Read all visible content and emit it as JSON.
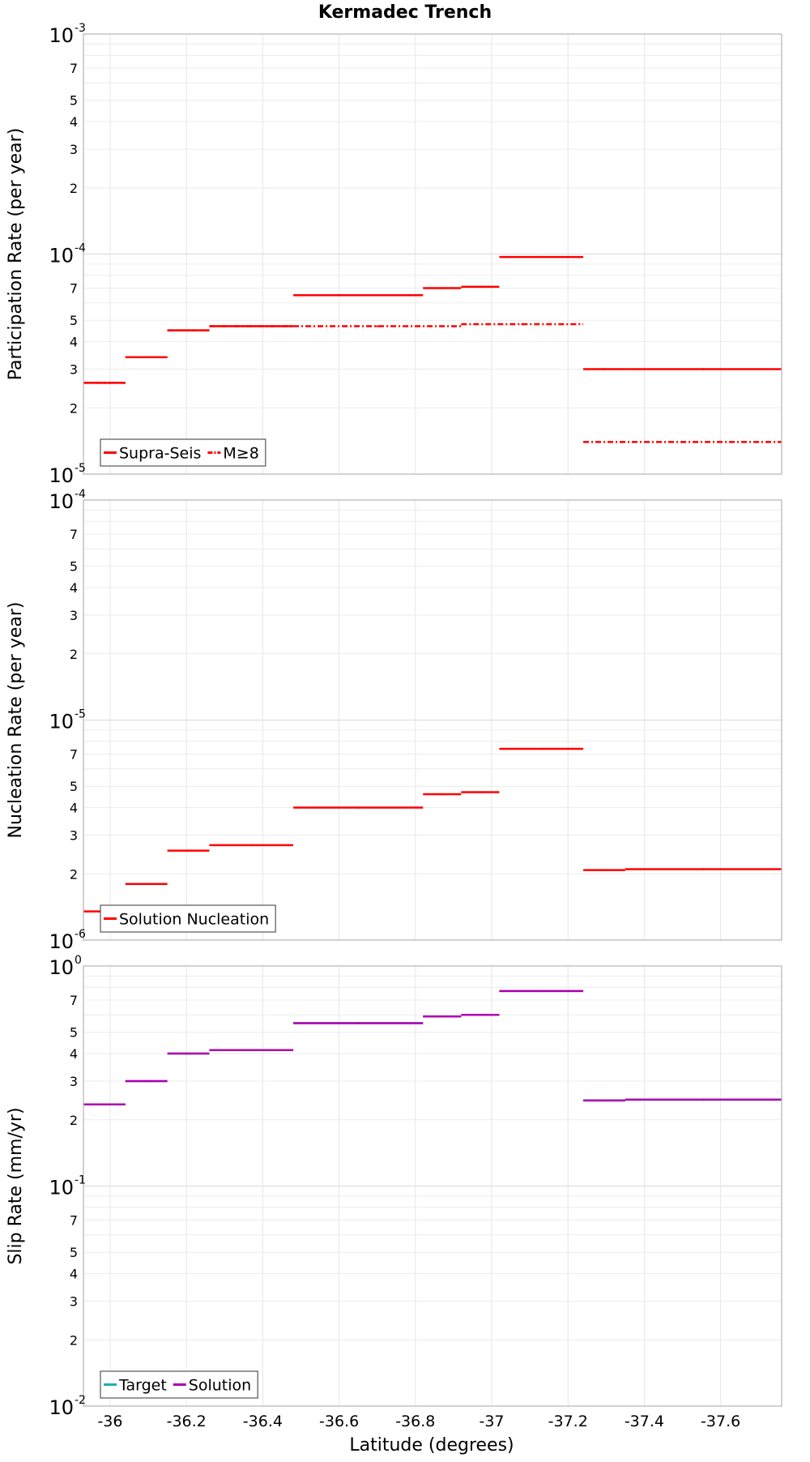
{
  "chart_data": {
    "type": "line",
    "title": "Kermadec Trench",
    "xlabel": "Latitude (degrees)",
    "xlim": [
      -35.93,
      -37.76
    ],
    "x_ticks": [
      -36,
      -36.2,
      -36.4,
      -36.6,
      -36.8,
      -37,
      -37.2,
      -37.4,
      -37.6
    ],
    "x_tick_labels": [
      "-36",
      "-36.2",
      "-36.4",
      "-36.6",
      "-36.8",
      "-37",
      "-37.2",
      "-37.4",
      "-37.6"
    ],
    "colors": {
      "red": "#ff0000",
      "magenta": "#b000b0",
      "teal": "#20b0b0"
    },
    "panels": [
      {
        "ylabel": "Participation Rate (per year)",
        "yscale": "log",
        "ylim": [
          1e-05,
          0.001
        ],
        "decade_labels": [
          {
            "base": "10",
            "exp": "-5",
            "value": 1e-05
          },
          {
            "base": "10",
            "exp": "-4",
            "value": 0.0001
          },
          {
            "base": "10",
            "exp": "-3",
            "value": 0.001
          }
        ],
        "minor_labels": [
          "2",
          "3",
          "4",
          "5",
          "7"
        ],
        "legend": [
          {
            "label": "Supra-Seis",
            "color": "#ff0000",
            "style": "solid"
          },
          {
            "label": "M≥8",
            "color": "#ff0000",
            "style": "dashdot"
          }
        ],
        "series": [
          {
            "name": "Supra-Seis",
            "style": "solid",
            "color": "#ff0000",
            "segments": [
              {
                "x0": -35.93,
                "x1": -36.04,
                "y": 2.6e-05
              },
              {
                "x0": -36.04,
                "x1": -36.15,
                "y": 3.4e-05
              },
              {
                "x0": -36.15,
                "x1": -36.26,
                "y": 4.5e-05
              },
              {
                "x0": -36.26,
                "x1": -36.48,
                "y": 4.7e-05
              },
              {
                "x0": -36.48,
                "x1": -36.82,
                "y": 6.5e-05
              },
              {
                "x0": -36.82,
                "x1": -36.92,
                "y": 7e-05
              },
              {
                "x0": -36.92,
                "x1": -37.02,
                "y": 7.1e-05
              },
              {
                "x0": -37.02,
                "x1": -37.24,
                "y": 9.7e-05
              },
              {
                "x0": -37.24,
                "x1": -37.35,
                "y": 3e-05
              },
              {
                "x0": -37.35,
                "x1": -37.76,
                "y": 3e-05
              }
            ]
          },
          {
            "name": "M≥8",
            "style": "dashdot",
            "color": "#ff0000",
            "segments": [
              {
                "x0": -35.93,
                "x1": -36.04,
                "y": 2.6e-05
              },
              {
                "x0": -36.04,
                "x1": -36.15,
                "y": 3.4e-05
              },
              {
                "x0": -36.15,
                "x1": -36.26,
                "y": 4.5e-05
              },
              {
                "x0": -36.26,
                "x1": -36.48,
                "y": 4.7e-05
              },
              {
                "x0": -36.48,
                "x1": -36.92,
                "y": 4.7e-05
              },
              {
                "x0": -36.92,
                "x1": -37.24,
                "y": 4.8e-05
              },
              {
                "x0": -37.24,
                "x1": -37.76,
                "y": 1.4e-05
              }
            ]
          }
        ]
      },
      {
        "ylabel": "Nucleation Rate (per year)",
        "yscale": "log",
        "ylim": [
          1e-06,
          0.0001
        ],
        "decade_labels": [
          {
            "base": "10",
            "exp": "-6",
            "value": 1e-06
          },
          {
            "base": "10",
            "exp": "-5",
            "value": 1e-05
          },
          {
            "base": "10",
            "exp": "-4",
            "value": 0.0001
          }
        ],
        "minor_labels": [
          "2",
          "3",
          "4",
          "5",
          "7"
        ],
        "legend": [
          {
            "label": "Solution Nucleation",
            "color": "#ff0000",
            "style": "solid"
          }
        ],
        "series": [
          {
            "name": "Solution Nucleation",
            "style": "solid",
            "color": "#ff0000",
            "segments": [
              {
                "x0": -35.93,
                "x1": -36.04,
                "y": 1.35e-06
              },
              {
                "x0": -36.04,
                "x1": -36.15,
                "y": 1.8e-06
              },
              {
                "x0": -36.15,
                "x1": -36.26,
                "y": 2.55e-06
              },
              {
                "x0": -36.26,
                "x1": -36.48,
                "y": 2.7e-06
              },
              {
                "x0": -36.48,
                "x1": -36.82,
                "y": 4e-06
              },
              {
                "x0": -36.82,
                "x1": -36.92,
                "y": 4.6e-06
              },
              {
                "x0": -36.92,
                "x1": -37.02,
                "y": 4.7e-06
              },
              {
                "x0": -37.02,
                "x1": -37.24,
                "y": 7.4e-06
              },
              {
                "x0": -37.24,
                "x1": -37.35,
                "y": 2.08e-06
              },
              {
                "x0": -37.35,
                "x1": -37.76,
                "y": 2.1e-06
              }
            ]
          }
        ]
      },
      {
        "ylabel": "Slip Rate (mm/yr)",
        "yscale": "log",
        "ylim": [
          0.01,
          1
        ],
        "decade_labels": [
          {
            "base": "10",
            "exp": "-2",
            "value": 0.01
          },
          {
            "base": "10",
            "exp": "-1",
            "value": 0.1
          },
          {
            "base": "10",
            "exp": "0",
            "value": 1
          }
        ],
        "minor_labels": [
          "2",
          "3",
          "4",
          "5",
          "7"
        ],
        "legend": [
          {
            "label": "Target",
            "color": "#20b0b0",
            "style": "solid"
          },
          {
            "label": "Solution",
            "color": "#b000b0",
            "style": "solid"
          }
        ],
        "series": [
          {
            "name": "Target",
            "style": "solid",
            "color": "#20b0b0",
            "segments": [
              {
                "x0": -35.93,
                "x1": -36.04,
                "y": 0.235
              },
              {
                "x0": -36.04,
                "x1": -36.15,
                "y": 0.3
              },
              {
                "x0": -36.15,
                "x1": -36.26,
                "y": 0.4
              },
              {
                "x0": -36.26,
                "x1": -36.48,
                "y": 0.415
              },
              {
                "x0": -36.48,
                "x1": -36.82,
                "y": 0.55
              },
              {
                "x0": -36.82,
                "x1": -36.92,
                "y": 0.59
              },
              {
                "x0": -36.92,
                "x1": -37.02,
                "y": 0.6
              },
              {
                "x0": -37.02,
                "x1": -37.24,
                "y": 0.77
              },
              {
                "x0": -37.24,
                "x1": -37.35,
                "y": 0.245
              },
              {
                "x0": -37.35,
                "x1": -37.76,
                "y": 0.247
              }
            ]
          },
          {
            "name": "Solution",
            "style": "solid",
            "color": "#b000b0",
            "segments": [
              {
                "x0": -35.93,
                "x1": -36.04,
                "y": 0.235
              },
              {
                "x0": -36.04,
                "x1": -36.15,
                "y": 0.3
              },
              {
                "x0": -36.15,
                "x1": -36.26,
                "y": 0.4
              },
              {
                "x0": -36.26,
                "x1": -36.48,
                "y": 0.415
              },
              {
                "x0": -36.48,
                "x1": -36.82,
                "y": 0.55
              },
              {
                "x0": -36.82,
                "x1": -36.92,
                "y": 0.59
              },
              {
                "x0": -36.92,
                "x1": -37.02,
                "y": 0.6
              },
              {
                "x0": -37.02,
                "x1": -37.24,
                "y": 0.77
              },
              {
                "x0": -37.24,
                "x1": -37.35,
                "y": 0.245
              },
              {
                "x0": -37.35,
                "x1": -37.76,
                "y": 0.247
              }
            ]
          }
        ]
      }
    ]
  }
}
